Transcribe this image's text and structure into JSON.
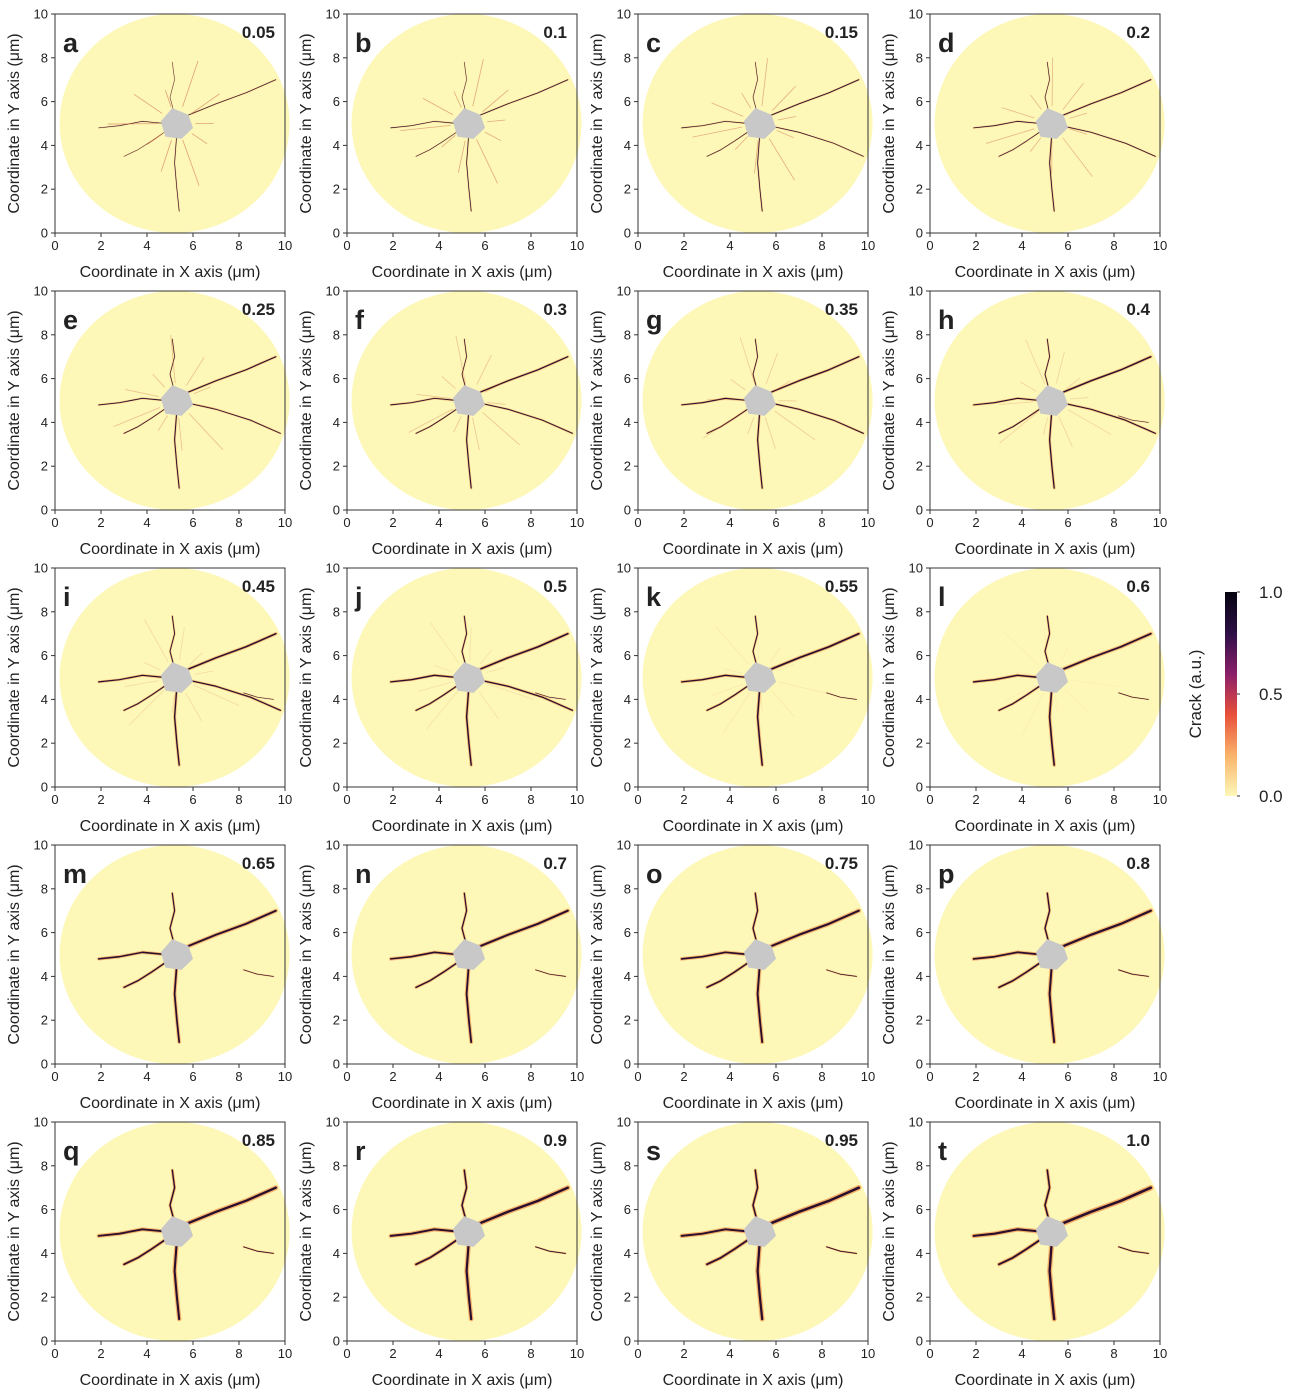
{
  "chart_data": [
    {
      "type": "heatmap",
      "label": "a",
      "annotation": "0.05",
      "x_label": "Coordinate in X axis (μm)",
      "y_label": "Coordinate in Y axis (μm)",
      "xlim": [
        0,
        10
      ],
      "ylim": [
        0,
        10
      ],
      "xticks": [
        0,
        2,
        4,
        6,
        8,
        10
      ],
      "yticks": [
        0,
        2,
        4,
        6,
        8,
        10
      ]
    },
    {
      "type": "heatmap",
      "label": "b",
      "annotation": "0.1",
      "x_label": "Coordinate in X axis (μm)",
      "y_label": "Coordinate in Y axis (μm)",
      "xlim": [
        0,
        10
      ],
      "ylim": [
        0,
        10
      ],
      "xticks": [
        0,
        2,
        4,
        6,
        8,
        10
      ],
      "yticks": [
        0,
        2,
        4,
        6,
        8,
        10
      ]
    },
    {
      "type": "heatmap",
      "label": "c",
      "annotation": "0.15",
      "x_label": "Coordinate in X axis (μm)",
      "y_label": "Coordinate in Y axis (μm)",
      "xlim": [
        0,
        10
      ],
      "ylim": [
        0,
        10
      ],
      "xticks": [
        0,
        2,
        4,
        6,
        8,
        10
      ],
      "yticks": [
        0,
        2,
        4,
        6,
        8,
        10
      ]
    },
    {
      "type": "heatmap",
      "label": "d",
      "annotation": "0.2",
      "x_label": "Coordinate in X axis (μm)",
      "y_label": "Coordinate in Y axis (μm)",
      "xlim": [
        0,
        10
      ],
      "ylim": [
        0,
        10
      ],
      "xticks": [
        0,
        2,
        4,
        6,
        8,
        10
      ],
      "yticks": [
        0,
        2,
        4,
        6,
        8,
        10
      ]
    },
    {
      "type": "heatmap",
      "label": "e",
      "annotation": "0.25",
      "x_label": "Coordinate in X axis (μm)",
      "y_label": "Coordinate in Y axis (μm)",
      "xlim": [
        0,
        10
      ],
      "ylim": [
        0,
        10
      ],
      "xticks": [
        0,
        2,
        4,
        6,
        8,
        10
      ],
      "yticks": [
        0,
        2,
        4,
        6,
        8,
        10
      ]
    },
    {
      "type": "heatmap",
      "label": "f",
      "annotation": "0.3",
      "x_label": "Coordinate in X axis (μm)",
      "y_label": "Coordinate in Y axis (μm)",
      "xlim": [
        0,
        10
      ],
      "ylim": [
        0,
        10
      ],
      "xticks": [
        0,
        2,
        4,
        6,
        8,
        10
      ],
      "yticks": [
        0,
        2,
        4,
        6,
        8,
        10
      ]
    },
    {
      "type": "heatmap",
      "label": "g",
      "annotation": "0.35",
      "x_label": "Coordinate in X axis (μm)",
      "y_label": "Coordinate in Y axis (μm)",
      "xlim": [
        0,
        10
      ],
      "ylim": [
        0,
        10
      ],
      "xticks": [
        0,
        2,
        4,
        6,
        8,
        10
      ],
      "yticks": [
        0,
        2,
        4,
        6,
        8,
        10
      ]
    },
    {
      "type": "heatmap",
      "label": "h",
      "annotation": "0.4",
      "x_label": "Coordinate in X axis (μm)",
      "y_label": "Coordinate in Y axis (μm)",
      "xlim": [
        0,
        10
      ],
      "ylim": [
        0,
        10
      ],
      "xticks": [
        0,
        2,
        4,
        6,
        8,
        10
      ],
      "yticks": [
        0,
        2,
        4,
        6,
        8,
        10
      ]
    },
    {
      "type": "heatmap",
      "label": "i",
      "annotation": "0.45",
      "x_label": "Coordinate in X axis (μm)",
      "y_label": "Coordinate in Y axis (μm)",
      "xlim": [
        0,
        10
      ],
      "ylim": [
        0,
        10
      ],
      "xticks": [
        0,
        2,
        4,
        6,
        8,
        10
      ],
      "yticks": [
        0,
        2,
        4,
        6,
        8,
        10
      ]
    },
    {
      "type": "heatmap",
      "label": "j",
      "annotation": "0.5",
      "x_label": "Coordinate in X axis (μm)",
      "y_label": "Coordinate in Y axis (μm)",
      "xlim": [
        0,
        10
      ],
      "ylim": [
        0,
        10
      ],
      "xticks": [
        0,
        2,
        4,
        6,
        8,
        10
      ],
      "yticks": [
        0,
        2,
        4,
        6,
        8,
        10
      ]
    },
    {
      "type": "heatmap",
      "label": "k",
      "annotation": "0.55",
      "x_label": "Coordinate in X axis (μm)",
      "y_label": "Coordinate in Y axis (μm)",
      "xlim": [
        0,
        10
      ],
      "ylim": [
        0,
        10
      ],
      "xticks": [
        0,
        2,
        4,
        6,
        8,
        10
      ],
      "yticks": [
        0,
        2,
        4,
        6,
        8,
        10
      ]
    },
    {
      "type": "heatmap",
      "label": "l",
      "annotation": "0.6",
      "x_label": "Coordinate in X axis (μm)",
      "y_label": "Coordinate in Y axis (μm)",
      "xlim": [
        0,
        10
      ],
      "ylim": [
        0,
        10
      ],
      "xticks": [
        0,
        2,
        4,
        6,
        8,
        10
      ],
      "yticks": [
        0,
        2,
        4,
        6,
        8,
        10
      ]
    },
    {
      "type": "heatmap",
      "label": "m",
      "annotation": "0.65",
      "x_label": "Coordinate in X axis (μm)",
      "y_label": "Coordinate in Y axis (μm)",
      "xlim": [
        0,
        10
      ],
      "ylim": [
        0,
        10
      ],
      "xticks": [
        0,
        2,
        4,
        6,
        8,
        10
      ],
      "yticks": [
        0,
        2,
        4,
        6,
        8,
        10
      ]
    },
    {
      "type": "heatmap",
      "label": "n",
      "annotation": "0.7",
      "x_label": "Coordinate in X axis (μm)",
      "y_label": "Coordinate in Y axis (μm)",
      "xlim": [
        0,
        10
      ],
      "ylim": [
        0,
        10
      ],
      "xticks": [
        0,
        2,
        4,
        6,
        8,
        10
      ],
      "yticks": [
        0,
        2,
        4,
        6,
        8,
        10
      ]
    },
    {
      "type": "heatmap",
      "label": "o",
      "annotation": "0.75",
      "x_label": "Coordinate in X axis (μm)",
      "y_label": "Coordinate in Y axis (μm)",
      "xlim": [
        0,
        10
      ],
      "ylim": [
        0,
        10
      ],
      "xticks": [
        0,
        2,
        4,
        6,
        8,
        10
      ],
      "yticks": [
        0,
        2,
        4,
        6,
        8,
        10
      ]
    },
    {
      "type": "heatmap",
      "label": "p",
      "annotation": "0.8",
      "x_label": "Coordinate in X axis (μm)",
      "y_label": "Coordinate in Y axis (μm)",
      "xlim": [
        0,
        10
      ],
      "ylim": [
        0,
        10
      ],
      "xticks": [
        0,
        2,
        4,
        6,
        8,
        10
      ],
      "yticks": [
        0,
        2,
        4,
        6,
        8,
        10
      ]
    },
    {
      "type": "heatmap",
      "label": "q",
      "annotation": "0.85",
      "x_label": "Coordinate in X axis (μm)",
      "y_label": "Coordinate in Y axis (μm)",
      "xlim": [
        0,
        10
      ],
      "ylim": [
        0,
        10
      ],
      "xticks": [
        0,
        2,
        4,
        6,
        8,
        10
      ],
      "yticks": [
        0,
        2,
        4,
        6,
        8,
        10
      ]
    },
    {
      "type": "heatmap",
      "label": "r",
      "annotation": "0.9",
      "x_label": "Coordinate in X axis (μm)",
      "y_label": "Coordinate in Y axis (μm)",
      "xlim": [
        0,
        10
      ],
      "ylim": [
        0,
        10
      ],
      "xticks": [
        0,
        2,
        4,
        6,
        8,
        10
      ],
      "yticks": [
        0,
        2,
        4,
        6,
        8,
        10
      ]
    },
    {
      "type": "heatmap",
      "label": "s",
      "annotation": "0.95",
      "x_label": "Coordinate in X axis (μm)",
      "y_label": "Coordinate in Y axis (μm)",
      "xlim": [
        0,
        10
      ],
      "ylim": [
        0,
        10
      ],
      "xticks": [
        0,
        2,
        4,
        6,
        8,
        10
      ],
      "yticks": [
        0,
        2,
        4,
        6,
        8,
        10
      ]
    },
    {
      "type": "heatmap",
      "label": "t",
      "annotation": "1.0",
      "x_label": "Coordinate in X axis (μm)",
      "y_label": "Coordinate in Y axis (μm)",
      "xlim": [
        0,
        10
      ],
      "ylim": [
        0,
        10
      ],
      "xticks": [
        0,
        2,
        4,
        6,
        8,
        10
      ],
      "yticks": [
        0,
        2,
        4,
        6,
        8,
        10
      ]
    }
  ],
  "colorbar": {
    "label": "Crack (a.u.)",
    "lim": [
      0,
      1
    ],
    "ticks": [
      {
        "value": 0,
        "label": "0.0"
      },
      0.5,
      {
        "value": 1,
        "label": "1.0"
      }
    ],
    "colors": [
      "#fdf7b8",
      "#f9b36a",
      "#e8503a",
      "#8a1f6a",
      "#2c0f45",
      "#05030f"
    ]
  }
}
